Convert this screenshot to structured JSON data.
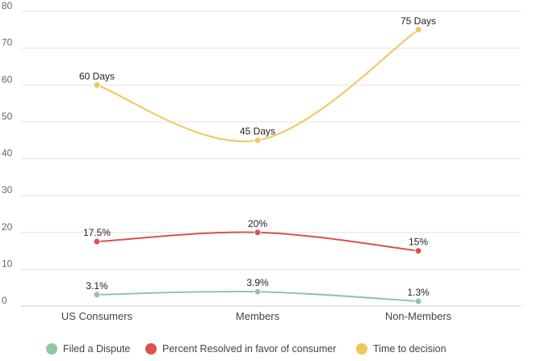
{
  "chart_data": {
    "type": "line",
    "categories": [
      "US Consumers",
      "Members",
      "Non-Members"
    ],
    "y_ticks": [
      0,
      10,
      20,
      30,
      40,
      50,
      60,
      70,
      80
    ],
    "ylim": [
      0,
      80
    ],
    "grid": true,
    "legend_position": "bottom",
    "series": [
      {
        "name": "Filed a Dispute",
        "color": "#8fc7a3",
        "values": [
          3.1,
          3.9,
          1.3
        ],
        "labels": [
          "3.1%",
          "3.9%",
          "1.3%"
        ]
      },
      {
        "name": "Percent Resolved in favor of consumer",
        "color": "#d9534f",
        "values": [
          17.5,
          20,
          15
        ],
        "labels": [
          "17.5%",
          "20%",
          "15%"
        ]
      },
      {
        "name": "Time to decision",
        "color": "#f0c75e",
        "values": [
          60,
          45,
          75
        ],
        "labels": [
          "60 Days",
          "45 Days",
          "75 Days"
        ]
      }
    ]
  }
}
